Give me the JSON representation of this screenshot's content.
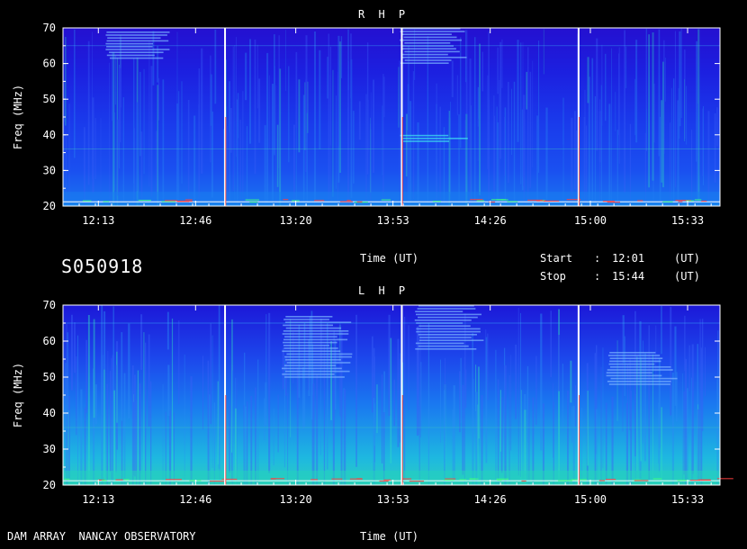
{
  "chart_data": [
    {
      "type": "heatmap",
      "title": "R H P",
      "ylabel": "Freq (MHz)",
      "xlabel": "Time (UT)",
      "ylim": [
        20,
        70
      ],
      "xlim": [
        "12:01",
        "15:44"
      ],
      "yticks": [
        20,
        30,
        40,
        50,
        60,
        70
      ],
      "xticks": [
        "12:13",
        "12:46",
        "13:20",
        "13:53",
        "14:26",
        "15:00",
        "15:33"
      ],
      "colormap": [
        "#1c10d8",
        "#1c40f0",
        "#1a78f0",
        "#20c0e0",
        "#30f0a0",
        "#a0ff40",
        "#ff3020",
        "#ffffff"
      ],
      "calibration_lines": [
        "12:56",
        "13:56",
        "14:56"
      ],
      "features": [
        {
          "label": "emission patch",
          "t": "12:25",
          "f_range": [
            61,
            69
          ]
        },
        {
          "label": "emission patch",
          "t": "14:05",
          "f_range": [
            60,
            70
          ]
        },
        {
          "label": "emission patch",
          "t": "14:05",
          "f_range": [
            38,
            40
          ]
        }
      ]
    },
    {
      "type": "heatmap",
      "title": "L H P",
      "ylabel": "Freq (MHz)",
      "xlabel": "Time (UT)",
      "ylim": [
        20,
        70
      ],
      "xlim": [
        "12:01",
        "15:44"
      ],
      "yticks": [
        20,
        30,
        40,
        50,
        60,
        70
      ],
      "xticks": [
        "12:13",
        "12:46",
        "13:20",
        "13:53",
        "14:26",
        "15:00",
        "15:33"
      ],
      "colormap": [
        "#1c10d8",
        "#1c40f0",
        "#1a78f0",
        "#20c0e0",
        "#30f0a0",
        "#a0ff40",
        "#ff3020",
        "#ffffff"
      ],
      "calibration_lines": [
        "12:56",
        "13:56",
        "14:56"
      ],
      "features": [
        {
          "label": "emission patch",
          "t": "13:25",
          "f_range": [
            50,
            67
          ]
        },
        {
          "label": "emission patch",
          "t": "14:10",
          "f_range": [
            58,
            70
          ]
        },
        {
          "label": "emission patch",
          "t": "15:15",
          "f_range": [
            48,
            57
          ]
        }
      ]
    }
  ],
  "header": {
    "rhp_title": "R H P",
    "lhp_title": "L H P"
  },
  "info": {
    "session_id": "S050918",
    "time_label": "Time (UT)",
    "start_label": "Start",
    "stop_label": "Stop",
    "colon": ":",
    "start_value": "12:01",
    "stop_value": "15:44",
    "unit": "(UT)"
  },
  "footer": {
    "observatory": "DAM ARRAY  NANCAY OBSERVATORY",
    "time_label": "Time (UT)"
  }
}
